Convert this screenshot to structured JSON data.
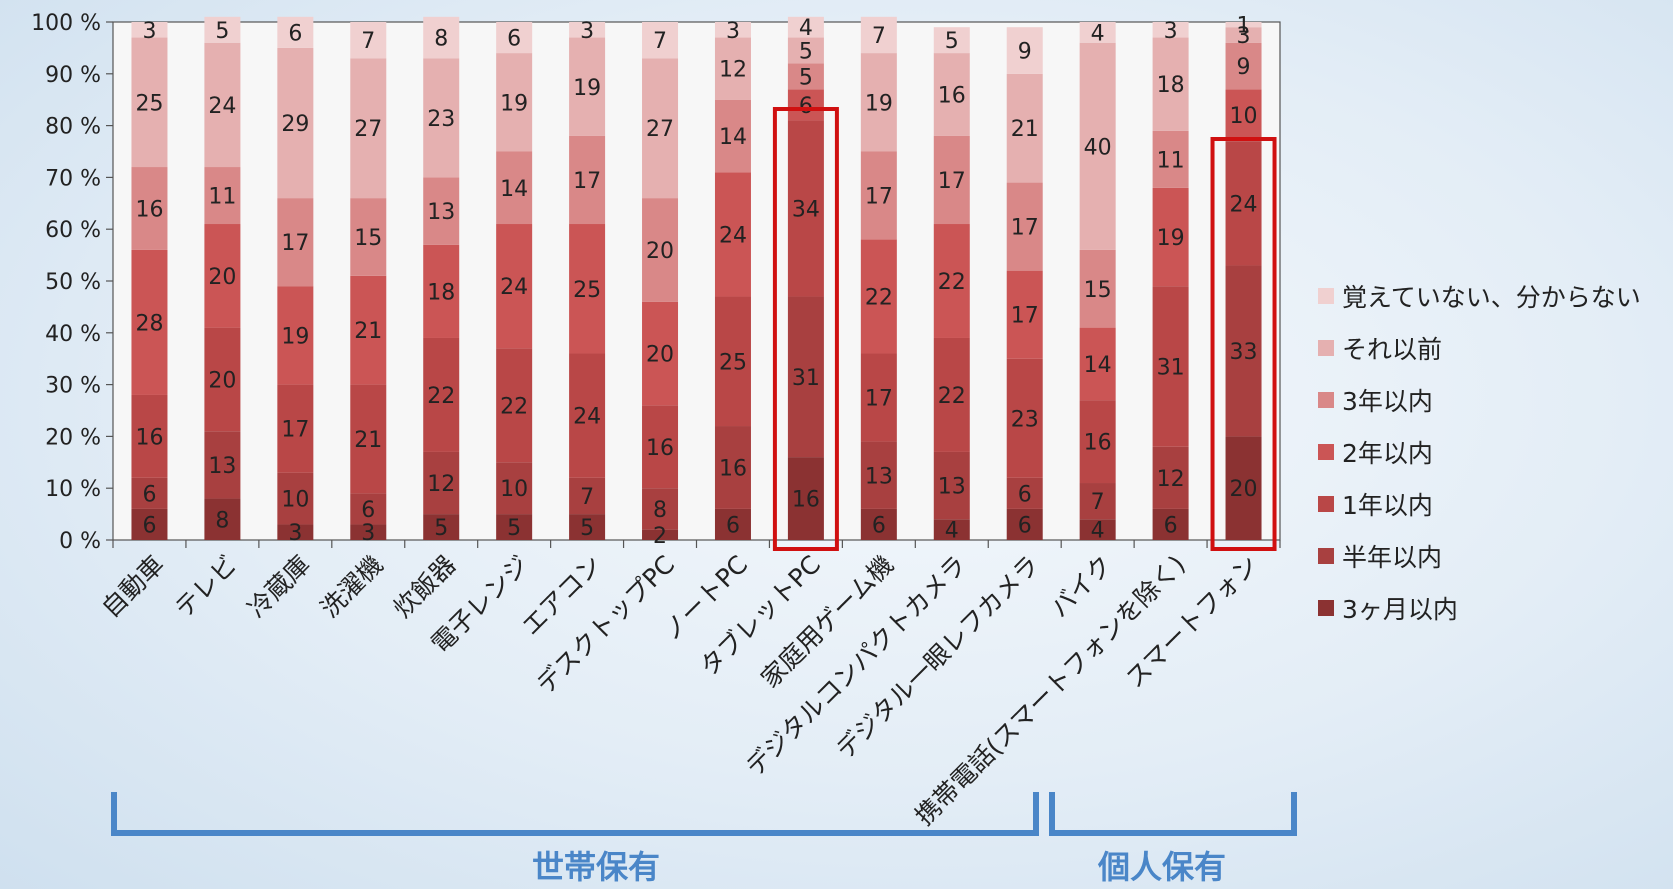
{
  "chart_data": {
    "type": "bar",
    "stacked": true,
    "percent": true,
    "title": "",
    "xlabel": "",
    "ylabel": "",
    "ylim": [
      0,
      100
    ],
    "yticks": [
      "0 %",
      "10 %",
      "20 %",
      "30 %",
      "40 %",
      "50 %",
      "60 %",
      "70 %",
      "80 %",
      "90 %",
      "100 %"
    ],
    "grid": false,
    "legend_position": "right",
    "categories": [
      "自動車",
      "テレビ",
      "冷蔵庫",
      "洗濯機",
      "炊飯器",
      "電子レンジ",
      "エアコン",
      "デスクトップPC",
      "ノートPC",
      "タブレットPC",
      "家庭用ゲーム機",
      "デジタルコンパクトカメラ",
      "デジタル一眼レフカメラ",
      "バイク",
      "携帯電話(スマートフォンを除く)",
      "スマートフォン"
    ],
    "series": [
      {
        "name": "3ヶ月以内",
        "color": "#8b3232",
        "values": [
          6,
          8,
          3,
          3,
          5,
          5,
          5,
          2,
          6,
          16,
          6,
          4,
          6,
          4,
          6,
          20
        ]
      },
      {
        "name": "半年以内",
        "color": "#a84040",
        "values": [
          6,
          13,
          10,
          6,
          12,
          10,
          7,
          8,
          16,
          31,
          13,
          13,
          6,
          7,
          12,
          33
        ]
      },
      {
        "name": "1年以内",
        "color": "#b94747",
        "values": [
          16,
          20,
          17,
          21,
          22,
          22,
          24,
          16,
          25,
          34,
          17,
          22,
          23,
          16,
          31,
          24
        ]
      },
      {
        "name": "2年以内",
        "color": "#cb5555",
        "values": [
          28,
          20,
          19,
          21,
          18,
          24,
          25,
          20,
          24,
          6,
          22,
          22,
          17,
          14,
          19,
          10
        ]
      },
      {
        "name": "3年以内",
        "color": "#d98888",
        "values": [
          16,
          11,
          17,
          15,
          13,
          14,
          17,
          20,
          14,
          5,
          17,
          17,
          17,
          15,
          11,
          9
        ]
      },
      {
        "name": "それ以前",
        "color": "#e5b0b0",
        "values": [
          25,
          24,
          29,
          27,
          23,
          19,
          19,
          27,
          12,
          5,
          19,
          16,
          21,
          40,
          18,
          3
        ]
      },
      {
        "name": "覚えていない、分からない",
        "color": "#f0d0d0",
        "values": [
          3,
          5,
          6,
          7,
          8,
          6,
          3,
          7,
          3,
          4,
          7,
          5,
          9,
          4,
          3,
          1
        ]
      }
    ],
    "highlighted": [
      "タブレットPC",
      "スマートフォン"
    ],
    "groups": [
      {
        "label": "世帯保有",
        "from": "自動車",
        "to": "携帯電話(スマートフォンを除く)"
      },
      {
        "label": "個人保有",
        "from": "バイク",
        "to": "スマートフォン"
      }
    ]
  }
}
